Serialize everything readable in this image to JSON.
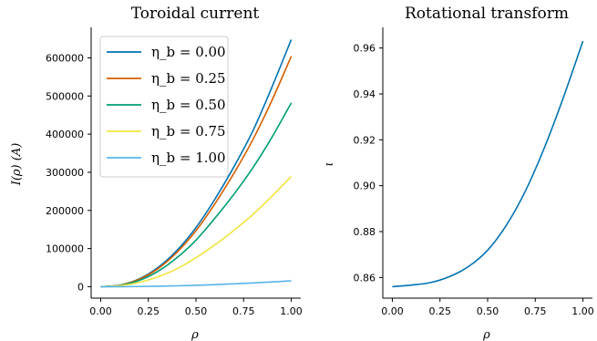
{
  "chart_data": [
    {
      "type": "line",
      "title": "Toroidal current",
      "xlabel": "ρ",
      "ylabel": "I(ρ) (A)",
      "xlim": [
        -0.05,
        1.05
      ],
      "ylim": [
        -30000,
        680000
      ],
      "xticks": [
        "0.00",
        "0.25",
        "0.50",
        "0.75",
        "1.00"
      ],
      "yticks": [
        "0",
        "100000",
        "200000",
        "300000",
        "400000",
        "500000",
        "600000"
      ],
      "legend_position": "upper-left",
      "series": [
        {
          "name": "η_b = 0.00",
          "color": "#0072B2",
          "x": [
            0,
            0.1,
            0.2,
            0.3,
            0.4,
            0.5,
            0.6,
            0.7,
            0.8,
            0.9,
            1.0
          ],
          "y": [
            0,
            4000,
            20000,
            50000,
            95000,
            155000,
            230000,
            315000,
            410000,
            525000,
            648000
          ]
        },
        {
          "name": "η_b = 0.25",
          "color": "#D55E00",
          "x": [
            0,
            0.1,
            0.2,
            0.3,
            0.4,
            0.5,
            0.6,
            0.7,
            0.8,
            0.9,
            1.0
          ],
          "y": [
            0,
            4000,
            19000,
            47000,
            90000,
            147000,
            218000,
            298000,
            387000,
            490000,
            604000
          ]
        },
        {
          "name": "η_b = 0.50",
          "color": "#009E73",
          "x": [
            0,
            0.1,
            0.2,
            0.3,
            0.4,
            0.5,
            0.6,
            0.7,
            0.8,
            0.9,
            1.0
          ],
          "y": [
            0,
            3500,
            16000,
            40000,
            76000,
            122000,
            180000,
            243000,
            313000,
            393000,
            482000
          ]
        },
        {
          "name": "η_b = 0.75",
          "color": "#F0E442",
          "x": [
            0,
            0.1,
            0.2,
            0.3,
            0.4,
            0.5,
            0.6,
            0.7,
            0.8,
            0.9,
            1.0
          ],
          "y": [
            0,
            2500,
            11000,
            26000,
            47000,
            76000,
            110000,
            148000,
            190000,
            238000,
            289000
          ]
        },
        {
          "name": "η_b = 1.00",
          "color": "#56B4E9",
          "x": [
            0,
            0.1,
            0.2,
            0.3,
            0.4,
            0.5,
            0.6,
            0.7,
            0.8,
            0.9,
            1.0
          ],
          "y": [
            0,
            100,
            500,
            1200,
            2300,
            3700,
            5500,
            7600,
            9900,
            12500,
            15500
          ]
        }
      ]
    },
    {
      "type": "line",
      "title": "Rotational transform",
      "xlabel": "ρ",
      "ylabel": "ι",
      "xlim": [
        -0.05,
        1.05
      ],
      "ylim": [
        0.851,
        0.969
      ],
      "xticks": [
        "0.00",
        "0.25",
        "0.50",
        "0.75",
        "1.00"
      ],
      "yticks": [
        "0.86",
        "0.88",
        "0.90",
        "0.92",
        "0.94",
        "0.96"
      ],
      "series": [
        {
          "color": "#0072B2",
          "x": [
            0,
            0.1,
            0.2,
            0.3,
            0.4,
            0.5,
            0.6,
            0.7,
            0.8,
            0.9,
            1.0
          ],
          "y": [
            0.856,
            0.8567,
            0.8578,
            0.8604,
            0.8648,
            0.8719,
            0.883,
            0.898,
            0.917,
            0.939,
            0.963
          ]
        }
      ]
    }
  ]
}
